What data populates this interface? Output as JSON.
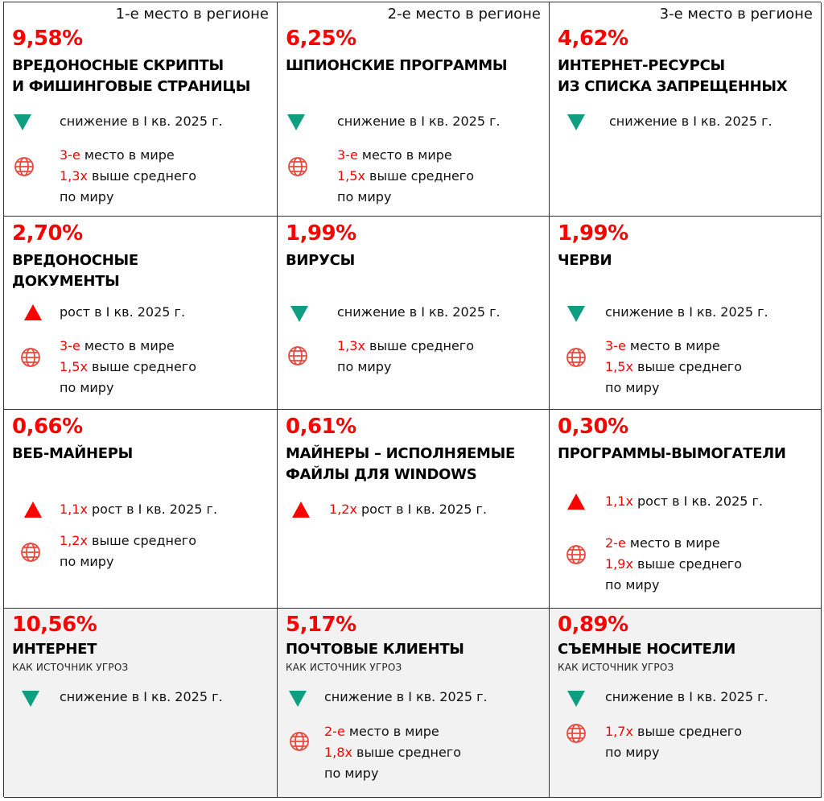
{
  "columns": [
    {
      "rank_label": "1-е место в регионе"
    },
    {
      "rank_label": "2-е место в регионе"
    },
    {
      "rank_label": "3-е место в регионе"
    }
  ],
  "common": {
    "decrease_label": "снижение в I кв. 2025 г.",
    "increase_label": "рост в I кв. 2025 г.",
    "world_place_suffix": " место в мире",
    "above_avg_suffix": " выше среднего",
    "world_suffix": "по миру",
    "source_label": "КАК ИСТОЧНИК УГРОЗ"
  },
  "colors": {
    "accent": "#ff0000",
    "decrease": "#0e9e80",
    "increase": "#ff0000",
    "globe": "#e8483c"
  },
  "cells": [
    {
      "pct": "9,58%",
      "title1": "ВРЕДОНОСНЫЕ СКРИПТЫ",
      "title2": "И ФИШИНГОВЫЕ СТРАНИЦЫ",
      "trend": "down",
      "place": "3-е",
      "mult": "1,3х"
    },
    {
      "pct": "6,25%",
      "title1": "ШПИОНСКИЕ ПРОГРАММЫ",
      "trend": "down",
      "place": "3-е",
      "mult": "1,5х"
    },
    {
      "pct": "4,62%",
      "title1": "ИНТЕРНЕТ-РЕСУРСЫ",
      "title2": "ИЗ СПИСКА ЗАПРЕЩЕННЫХ",
      "trend": "down"
    },
    {
      "pct": "2,70%",
      "title1": "ВРЕДОНОСНЫЕ",
      "title2": "ДОКУМЕНТЫ",
      "trend": "up",
      "place": "3-е",
      "mult": "1,5х"
    },
    {
      "pct": "1,99%",
      "title1": "ВИРУСЫ",
      "trend": "down",
      "mult": "1,3х"
    },
    {
      "pct": "1,99%",
      "title1": "ЧЕРВИ",
      "trend": "down",
      "place": "3-е",
      "mult": "1,5х"
    },
    {
      "pct": "0,66%",
      "title1": "ВЕБ-МАЙНЕРЫ",
      "trend": "up",
      "trend_mult": "1,1х",
      "mult": "1,2х"
    },
    {
      "pct": "0,61%",
      "title1": "МАЙНЕРЫ – ИСПОЛНЯЕМЫЕ",
      "title2": "ФАЙЛЫ ДЛЯ WINDOWS",
      "trend": "up",
      "trend_mult": "1,2х"
    },
    {
      "pct": "0,30%",
      "title1": "ПРОГРАММЫ-ВЫМОГАТЕЛИ",
      "trend": "up",
      "trend_mult": "1,1х",
      "place": "2-е",
      "mult": "1,9х"
    },
    {
      "pct": "10,56%",
      "title1": "ИНТЕРНЕТ",
      "source": true,
      "trend": "down"
    },
    {
      "pct": "5,17%",
      "title1": "ПОЧТОВЫЕ КЛИЕНТЫ",
      "source": true,
      "trend": "down",
      "place": "2-е",
      "mult": "1,8х"
    },
    {
      "pct": "0,89%",
      "title1": "СЪЕМНЫЕ НОСИТЕЛИ",
      "source": true,
      "trend": "down",
      "mult": "1,7х"
    }
  ]
}
